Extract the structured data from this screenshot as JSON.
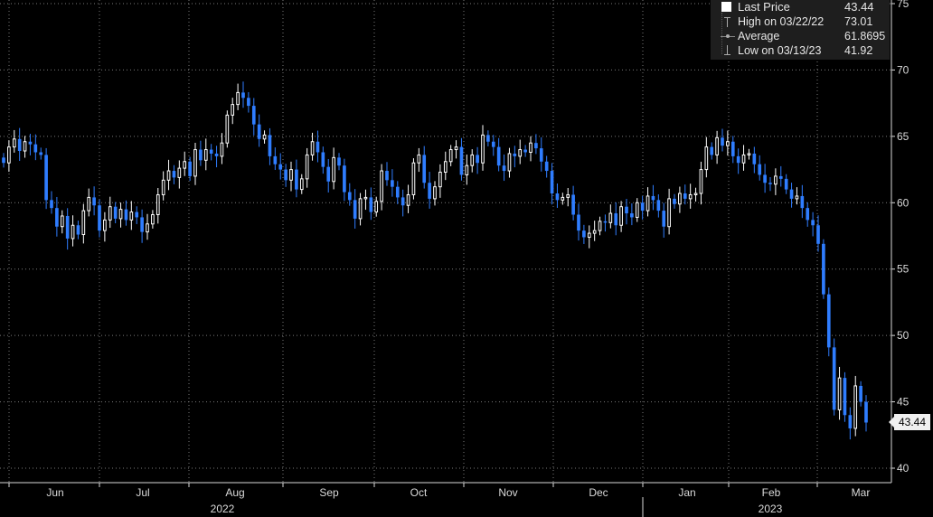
{
  "legend": {
    "last_label": "Last Price",
    "last_value": "43.44",
    "high_label": "High on 03/22/22",
    "high_value": "73.01",
    "avg_label": "Average",
    "avg_value": "61.8695",
    "low_label": "Low on 03/13/23",
    "low_value": "41.92"
  },
  "last_price_tag": "43.44",
  "colors": {
    "up": "#ffffff",
    "down": "#2f7dff",
    "grid": "#7a7a7a",
    "axis": "#d9d9d9",
    "background": "#000000"
  },
  "chart_data": {
    "type": "candlestick",
    "y_axis": {
      "ticks": [
        "75",
        "70",
        "65",
        "60",
        "55",
        "50",
        "45",
        "40"
      ],
      "range": [
        40,
        75
      ],
      "position": "right"
    },
    "x_axis": {
      "months": [
        "Jun",
        "Jul",
        "Aug",
        "Sep",
        "Oct",
        "Nov",
        "Dec",
        "Jan",
        "Feb",
        "Mar"
      ],
      "years": [
        "2022",
        "2023"
      ]
    },
    "grid": true,
    "closes": [
      63.0,
      64.2,
      64.8,
      63.9,
      64.6,
      64.4,
      63.8,
      63.6,
      60.2,
      59.6,
      58.2,
      59.0,
      57.3,
      58.3,
      57.6,
      59.4,
      60.4,
      59.8,
      57.9,
      58.7,
      59.7,
      58.8,
      59.5,
      58.7,
      59.3,
      58.9,
      57.8,
      58.4,
      59.1,
      60.6,
      61.7,
      62.4,
      61.9,
      62.6,
      63.1,
      62.0,
      64.0,
      63.2,
      64.0,
      63.7,
      63.5,
      64.5,
      66.6,
      67.4,
      68.3,
      67.9,
      67.3,
      65.9,
      64.8,
      65.1,
      63.5,
      62.9,
      62.5,
      61.7,
      62.5,
      61.0,
      61.8,
      63.6,
      64.6,
      63.8,
      62.7,
      61.6,
      63.4,
      62.8,
      60.8,
      60.2,
      58.8,
      60.3,
      60.4,
      59.3,
      60.1,
      62.4,
      61.7,
      61.2,
      60.4,
      59.8,
      60.6,
      63.0,
      63.6,
      61.5,
      60.3,
      61.2,
      62.3,
      63.1,
      64.0,
      64.2,
      62.1,
      62.8,
      63.6,
      63.0,
      65.1,
      64.6,
      64.2,
      62.8,
      62.4,
      63.7,
      63.5,
      64.0,
      63.8,
      64.5,
      64.1,
      63.1,
      62.4,
      60.7,
      60.2,
      60.4,
      60.6,
      59.1,
      57.9,
      57.4,
      57.7,
      57.9,
      58.6,
      58.5,
      59.2,
      58.3,
      59.7,
      59.2,
      58.9,
      60.0,
      59.4,
      60.5,
      60.2,
      59.4,
      58.2,
      60.3,
      59.9,
      60.7,
      60.3,
      60.6,
      60.7,
      62.5,
      64.2,
      63.6,
      64.9,
      64.3,
      64.6,
      63.5,
      63.0,
      63.6,
      63.7,
      62.9,
      62.1,
      61.5,
      61.4,
      62.0,
      61.8,
      61.0,
      60.3,
      60.5,
      59.6,
      58.7,
      58.3,
      56.9,
      53.1,
      49.1,
      44.4,
      46.8,
      44.0,
      43.0,
      46.2,
      45.0,
      43.44
    ]
  }
}
